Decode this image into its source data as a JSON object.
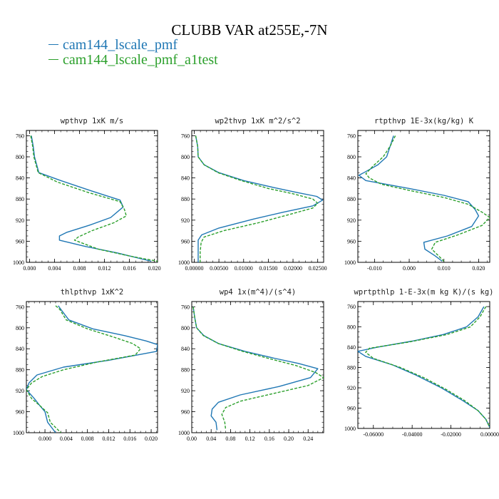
{
  "title": "CLUBB VAR at255E,-7N",
  "colors": {
    "series1": "#1f77b4",
    "series2": "#2ca02c"
  },
  "legend": [
    {
      "label": "cam144_lscale_pmf",
      "color": "#1f77b4",
      "style": "solid"
    },
    {
      "label": "cam144_lscale_pmf_a1test",
      "color": "#2ca02c",
      "style": "dashed"
    }
  ],
  "chart_data": [
    {
      "type": "line",
      "title": "wpthvp  1xK m/s",
      "xlim": [
        -0.0005,
        0.0205
      ],
      "ylim": [
        1000,
        750
      ],
      "xticks": [
        0.0,
        0.004,
        0.008,
        0.012,
        0.016,
        0.02
      ],
      "xticklabels": [
        "0.000",
        "0.004",
        "0.008",
        "0.012",
        "0.016",
        "0.020"
      ],
      "yticks": [
        760,
        800,
        840,
        880,
        920,
        960,
        1000
      ],
      "series": [
        {
          "values": [
            [
              0.0003,
              760
            ],
            [
              0.0006,
              780
            ],
            [
              0.0008,
              800
            ],
            [
              0.0015,
              830
            ],
            [
              0.005,
              845
            ],
            [
              0.01,
              865
            ],
            [
              0.0145,
              882
            ],
            [
              0.015,
              895
            ],
            [
              0.013,
              915
            ],
            [
              0.0095,
              930
            ],
            [
              0.006,
              943
            ],
            [
              0.0048,
              950
            ],
            [
              0.0048,
              958
            ],
            [
              0.009,
              970
            ],
            [
              0.014,
              982
            ],
            [
              0.0195,
              998
            ]
          ]
        },
        {
          "values": [
            [
              0.0002,
              760
            ],
            [
              0.0005,
              780
            ],
            [
              0.0007,
              800
            ],
            [
              0.0014,
              830
            ],
            [
              0.0045,
              848
            ],
            [
              0.0095,
              868
            ],
            [
              0.0145,
              885
            ],
            [
              0.0152,
              900
            ],
            [
              0.0155,
              912
            ],
            [
              0.0135,
              925
            ],
            [
              0.01,
              940
            ],
            [
              0.0078,
              952
            ],
            [
              0.0072,
              958
            ],
            [
              0.011,
              975
            ],
            [
              0.016,
              988
            ],
            [
              0.0205,
              998
            ]
          ]
        }
      ]
    },
    {
      "type": "line",
      "title": "wp2thvp  1xK m^2/s^2",
      "xlim": [
        -0.0005,
        0.0262
      ],
      "ylim": [
        1000,
        750
      ],
      "xticks": [
        0.0,
        0.005,
        0.01,
        0.015,
        0.02,
        0.025
      ],
      "xticklabels": [
        "0.00000",
        "0.00500",
        "0.01000",
        "0.01500",
        "0.02000",
        "0.02500"
      ],
      "yticks": [
        760,
        800,
        840,
        880,
        920,
        960,
        1000
      ],
      "series": [
        {
          "values": [
            [
              0.0003,
              760
            ],
            [
              0.0007,
              780
            ],
            [
              0.0008,
              800
            ],
            [
              0.002,
              815
            ],
            [
              0.005,
              830
            ],
            [
              0.01,
              845
            ],
            [
              0.016,
              858
            ],
            [
              0.021,
              868
            ],
            [
              0.0248,
              875
            ],
            [
              0.026,
              882
            ],
            [
              0.024,
              893
            ],
            [
              0.018,
              905
            ],
            [
              0.012,
              918
            ],
            [
              0.005,
              935
            ],
            [
              0.0015,
              948
            ],
            [
              0.0008,
              958
            ],
            [
              0.0008,
              980
            ],
            [
              0.0008,
              1000
            ]
          ]
        },
        {
          "values": [
            [
              0.0003,
              760
            ],
            [
              0.0007,
              780
            ],
            [
              0.0008,
              800
            ],
            [
              0.002,
              815
            ],
            [
              0.0048,
              830
            ],
            [
              0.0095,
              845
            ],
            [
              0.015,
              860
            ],
            [
              0.02,
              870
            ],
            [
              0.024,
              880
            ],
            [
              0.025,
              888
            ],
            [
              0.024,
              897
            ],
            [
              0.019,
              910
            ],
            [
              0.013,
              925
            ],
            [
              0.006,
              940
            ],
            [
              0.002,
              952
            ],
            [
              0.0014,
              962
            ],
            [
              0.0012,
              980
            ],
            [
              0.0012,
              1000
            ]
          ]
        }
      ]
    },
    {
      "type": "line",
      "title": "rtpthvp  1E-3x(kg/kg) K",
      "xlim": [
        -0.0148,
        0.0232
      ],
      "ylim": [
        1000,
        750
      ],
      "xticks": [
        -0.01,
        0.0,
        0.01,
        0.02
      ],
      "xticklabels": [
        "-0.010",
        "0.000",
        "0.010",
        "0.020"
      ],
      "yticks": [
        760,
        800,
        840,
        880,
        920,
        960,
        1000
      ],
      "series": [
        {
          "values": [
            [
              -0.0045,
              760
            ],
            [
              -0.0055,
              780
            ],
            [
              -0.0065,
              800
            ],
            [
              -0.009,
              815
            ],
            [
              -0.0125,
              828
            ],
            [
              -0.0145,
              835
            ],
            [
              -0.0125,
              845
            ],
            [
              -0.0,
              860
            ],
            [
              0.01,
              873
            ],
            [
              0.017,
              885
            ],
            [
              0.019,
              900
            ],
            [
              0.02,
              912
            ],
            [
              0.018,
              932
            ],
            [
              0.011,
              950
            ],
            [
              0.0042,
              962
            ],
            [
              0.0045,
              975
            ],
            [
              0.0075,
              988
            ],
            [
              0.0095,
              998
            ]
          ]
        },
        {
          "values": [
            [
              -0.004,
              760
            ],
            [
              -0.0055,
              780
            ],
            [
              -0.0075,
              800
            ],
            [
              -0.0105,
              818
            ],
            [
              -0.0125,
              832
            ],
            [
              -0.0115,
              840
            ],
            [
              -0.008,
              852
            ],
            [
              0.001,
              865
            ],
            [
              0.01,
              877
            ],
            [
              0.017,
              890
            ],
            [
              0.021,
              905
            ],
            [
              0.0232,
              915
            ],
            [
              0.021,
              930
            ],
            [
              0.014,
              948
            ],
            [
              0.0075,
              962
            ],
            [
              0.0065,
              975
            ],
            [
              0.0085,
              988
            ],
            [
              0.01,
              998
            ]
          ]
        }
      ]
    },
    {
      "type": "line",
      "title": "thlpthvp  1xK^2",
      "xlim": [
        -0.0035,
        0.0212
      ],
      "ylim": [
        1000,
        750
      ],
      "xticks": [
        0.0,
        0.004,
        0.008,
        0.012,
        0.016,
        0.02
      ],
      "xticklabels": [
        "0.000",
        "0.004",
        "0.008",
        "0.012",
        "0.016",
        "0.020"
      ],
      "yticks": [
        760,
        800,
        840,
        880,
        920,
        960,
        1000
      ],
      "series": [
        {
          "values": [
            [
              0.0025,
              758
            ],
            [
              0.003,
              765
            ],
            [
              0.0045,
              785
            ],
            [
              0.009,
              802
            ],
            [
              0.015,
              815
            ],
            [
              0.019,
              825
            ],
            [
              0.0212,
              832
            ],
            [
              0.021,
              845
            ],
            [
              0.012,
              862
            ],
            [
              0.0035,
              875
            ],
            [
              -0.0015,
              890
            ],
            [
              -0.003,
              905
            ],
            [
              -0.0035,
              918
            ],
            [
              -0.002,
              935
            ],
            [
              -0.001,
              948
            ],
            [
              0.0,
              960
            ],
            [
              0.0005,
              980
            ],
            [
              0.002,
              1000
            ]
          ]
        },
        {
          "values": [
            [
              0.002,
              758
            ],
            [
              0.0028,
              765
            ],
            [
              0.004,
              785
            ],
            [
              0.008,
              802
            ],
            [
              0.013,
              818
            ],
            [
              0.0165,
              830
            ],
            [
              0.018,
              840
            ],
            [
              0.017,
              852
            ],
            [
              0.01,
              865
            ],
            [
              0.0035,
              880
            ],
            [
              -0.0005,
              893
            ],
            [
              -0.0025,
              905
            ],
            [
              -0.0035,
              918
            ],
            [
              -0.0025,
              935
            ],
            [
              -0.001,
              948
            ],
            [
              0.0005,
              962
            ],
            [
              0.001,
              980
            ],
            [
              0.003,
              1000
            ]
          ]
        }
      ]
    },
    {
      "type": "line",
      "title": "wp4  1x(m^4)/(s^4)",
      "xlim": [
        0.0,
        0.272
      ],
      "ylim": [
        1000,
        750
      ],
      "xticks": [
        0.0,
        0.04,
        0.08,
        0.12,
        0.16,
        0.2,
        0.24
      ],
      "xticklabels": [
        "0.00",
        "0.04",
        "0.08",
        "0.12",
        "0.16",
        "0.20",
        "0.24"
      ],
      "yticks": [
        760,
        800,
        840,
        880,
        920,
        960,
        1000
      ],
      "series": [
        {
          "values": [
            [
              0.003,
              760
            ],
            [
              0.006,
              780
            ],
            [
              0.01,
              800
            ],
            [
              0.025,
              815
            ],
            [
              0.055,
              830
            ],
            [
              0.11,
              845
            ],
            [
              0.17,
              858
            ],
            [
              0.22,
              868
            ],
            [
              0.26,
              878
            ],
            [
              0.245,
              895
            ],
            [
              0.18,
              912
            ],
            [
              0.1,
              928
            ],
            [
              0.055,
              942
            ],
            [
              0.042,
              955
            ],
            [
              0.04,
              968
            ],
            [
              0.05,
              980
            ],
            [
              0.052,
              995
            ]
          ]
        },
        {
          "values": [
            [
              0.003,
              760
            ],
            [
              0.006,
              780
            ],
            [
              0.01,
              800
            ],
            [
              0.024,
              815
            ],
            [
              0.055,
              830
            ],
            [
              0.105,
              845
            ],
            [
              0.165,
              860
            ],
            [
              0.215,
              872
            ],
            [
              0.255,
              885
            ],
            [
              0.272,
              895
            ],
            [
              0.24,
              910
            ],
            [
              0.17,
              925
            ],
            [
              0.1,
              940
            ],
            [
              0.07,
              952
            ],
            [
              0.062,
              965
            ],
            [
              0.068,
              980
            ],
            [
              0.07,
              995
            ]
          ]
        }
      ]
    },
    {
      "type": "line",
      "title": "wprtpthlp  1-E-3x(m kg K)/(s kg)",
      "xlim": [
        -0.068,
        0.0
      ],
      "ylim": [
        1000,
        750
      ],
      "xticks": [
        -0.06,
        -0.04,
        -0.02,
        0.0
      ],
      "xticklabels": [
        "-0.06000",
        "-0.04000",
        "-0.02000",
        "0.00000"
      ],
      "yticks": [
        760,
        800,
        840,
        880,
        920,
        960,
        1000
      ],
      "series": [
        {
          "values": [
            [
              -0.003,
              760
            ],
            [
              -0.006,
              780
            ],
            [
              -0.012,
              800
            ],
            [
              -0.024,
              815
            ],
            [
              -0.04,
              828
            ],
            [
              -0.058,
              840
            ],
            [
              -0.068,
              848
            ],
            [
              -0.064,
              858
            ],
            [
              -0.05,
              875
            ],
            [
              -0.038,
              895
            ],
            [
              -0.025,
              920
            ],
            [
              -0.014,
              945
            ],
            [
              -0.006,
              965
            ],
            [
              -0.002,
              982
            ],
            [
              0.0,
              998
            ]
          ]
        },
        {
          "values": [
            [
              -0.002,
              760
            ],
            [
              -0.005,
              780
            ],
            [
              -0.01,
              800
            ],
            [
              -0.022,
              815
            ],
            [
              -0.042,
              830
            ],
            [
              -0.062,
              842
            ],
            [
              -0.064,
              850
            ],
            [
              -0.06,
              862
            ],
            [
              -0.046,
              880
            ],
            [
              -0.034,
              900
            ],
            [
              -0.023,
              922
            ],
            [
              -0.013,
              945
            ],
            [
              -0.006,
              965
            ],
            [
              -0.002,
              982
            ],
            [
              0.0,
              998
            ]
          ]
        }
      ]
    }
  ]
}
